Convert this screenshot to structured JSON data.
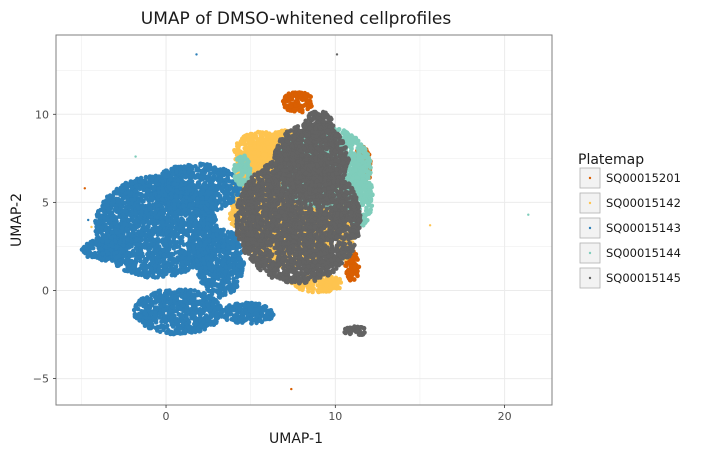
{
  "chart_data": {
    "type": "scatter",
    "title": "UMAP of DMSO-whitened cellprofiles",
    "xlabel": "UMAP-1",
    "ylabel": "UMAP-2",
    "xlim": [
      -6.5,
      22.8
    ],
    "ylim": [
      -6.5,
      14.5
    ],
    "x_ticks": [
      0,
      10,
      20
    ],
    "y_ticks": [
      -5,
      0,
      5,
      10
    ],
    "x_tick_labels": [
      "0",
      "10",
      "20"
    ],
    "y_tick_labels": [
      "−5",
      "0",
      "5",
      "10"
    ],
    "grid": true,
    "legend": {
      "title": "Platemap",
      "position": "right",
      "entries": [
        "SQ00015201",
        "SQ00015142",
        "SQ00015143",
        "SQ00015144",
        "SQ00015145"
      ]
    },
    "series": [
      {
        "name": "SQ00015201",
        "color": "#d95f02",
        "regions": [
          {
            "cx": 7.8,
            "cy": 10.7,
            "rx": 0.9,
            "ry": 0.6
          },
          {
            "cx": 11.6,
            "cy": 7.0,
            "rx": 0.5,
            "ry": 1.2
          },
          {
            "cx": 11.0,
            "cy": 1.4,
            "rx": 0.4,
            "ry": 0.9
          }
        ],
        "outliers": [
          [
            -4.8,
            5.8
          ],
          [
            7.4,
            -5.6
          ]
        ]
      },
      {
        "name": "SQ00015142",
        "color": "#fec44f",
        "regions": [
          {
            "cx": 7.3,
            "cy": 5.2,
            "rx": 3.4,
            "ry": 3.9
          },
          {
            "cx": 5.6,
            "cy": 7.8,
            "rx": 1.6,
            "ry": 1.2
          },
          {
            "cx": 4.6,
            "cy": 4.1,
            "rx": 0.9,
            "ry": 0.6
          },
          {
            "cx": 8.9,
            "cy": 0.4,
            "rx": 1.6,
            "ry": 0.5
          },
          {
            "cx": 10.6,
            "cy": 3.0,
            "rx": 0.5,
            "ry": 1.3
          }
        ],
        "outliers": [
          [
            15.6,
            3.7
          ],
          [
            -4.4,
            3.6
          ]
        ]
      },
      {
        "name": "SQ00015143",
        "color": "#2c7fb8",
        "regions": [
          {
            "cx": -0.6,
            "cy": 3.6,
            "rx": 3.6,
            "ry": 2.9
          },
          {
            "cx": 1.8,
            "cy": 5.8,
            "rx": 2.6,
            "ry": 1.4
          },
          {
            "cx": -3.6,
            "cy": 2.3,
            "rx": 1.4,
            "ry": 0.6
          },
          {
            "cx": 0.7,
            "cy": -1.2,
            "rx": 2.6,
            "ry": 1.3
          },
          {
            "cx": 4.8,
            "cy": -1.3,
            "rx": 1.6,
            "ry": 0.6
          },
          {
            "cx": 3.2,
            "cy": 1.6,
            "rx": 1.4,
            "ry": 2.0
          }
        ],
        "outliers": [
          [
            1.8,
            13.4
          ],
          [
            -4.6,
            4.0
          ]
        ]
      },
      {
        "name": "SQ00015144",
        "color": "#7fcdbb",
        "regions": [
          {
            "cx": 9.3,
            "cy": 7.0,
            "rx": 2.8,
            "ry": 2.3
          },
          {
            "cx": 11.4,
            "cy": 5.4,
            "rx": 0.8,
            "ry": 1.8
          },
          {
            "cx": 4.5,
            "cy": 6.8,
            "rx": 0.5,
            "ry": 0.9
          }
        ],
        "outliers": [
          [
            21.4,
            4.3
          ],
          [
            -1.8,
            7.6
          ]
        ]
      },
      {
        "name": "SQ00015145",
        "color": "#636363",
        "regions": [
          {
            "cx": 7.8,
            "cy": 4.0,
            "rx": 3.7,
            "ry": 3.6
          },
          {
            "cx": 8.6,
            "cy": 7.5,
            "rx": 2.2,
            "ry": 2.0
          },
          {
            "cx": 9.0,
            "cy": 9.3,
            "rx": 0.9,
            "ry": 0.9
          },
          {
            "cx": 11.2,
            "cy": -2.3,
            "rx": 0.7,
            "ry": 0.25
          }
        ],
        "outliers": [
          [
            10.1,
            13.4
          ]
        ]
      }
    ]
  }
}
